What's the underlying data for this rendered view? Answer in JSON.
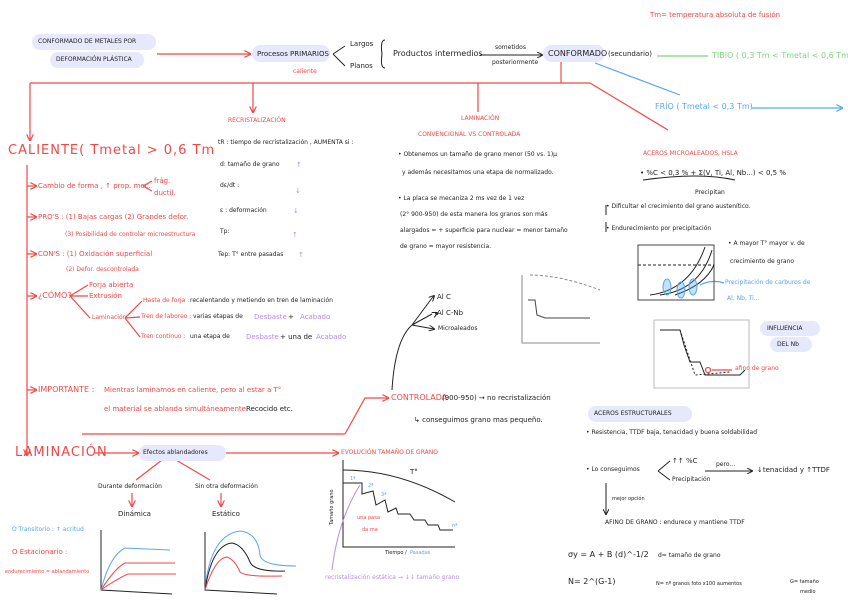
{
  "header": {
    "title_line1": "CONFORMADO DE METALES POR",
    "title_line2": "DEFORMACIÓN PLÁSTICA",
    "tm_note": "Tm= temperatura absoluta de fusión",
    "primarios": "Procesos PRIMARIOS",
    "caliente_note": "caliente",
    "largos": "Largos",
    "planos": "Planos",
    "productos": "Productos intermedios",
    "sometidos": "sometidos",
    "posteriormente": "posteriormente",
    "conformado": "CONFORMADO",
    "secundario": "(secundario)",
    "tibio": "TIBIO ( 0,3 Tm < Tmetal < 0,6 Tm)",
    "frio": "FRÍO ( Tmetal < 0,3 Tm)"
  },
  "caliente": {
    "title": "CALIENTE( Tmetal > 0,6 Tm",
    "cambio": "Cambio de forma , ↑ prop. mec.",
    "fragil": "frág.",
    "ductil": "ductil.",
    "pros": "PRO'S :  (1) Bajas cargas   (2) Grandes defor.",
    "pros_3": "(3) Posibilidad de controlar microestructura",
    "cons": "CON'S :  (1) Oxidación superficial",
    "cons_2": "(2) Defor. descontrolada",
    "como": "¿CÓMO?",
    "forja": "Forja abierta",
    "extrusion": "Extrusión",
    "laminacion": "Laminación",
    "hasta_forja": "Hasta de forja :",
    "hasta_forja_desc": "recalentando y metiendo en tren de laminación",
    "tren_laboreo": "Tren de laboreo :",
    "tren_laboreo_desc": "varias etapas de",
    "tren_continuo": "Tren continuo :",
    "tren_continuo_desc": "una etapa de",
    "desbaste": "Desbaste",
    "acabado": "Acabado",
    "y": "+",
    "y2": "+ una de",
    "importante": "IMPORTANTE :",
    "importante_1": "Mientras laminamos en caliente, pero al estar a T°",
    "importante_2": "el material se ablanda simultáneamente.",
    "importante_3": "Recocido etc."
  },
  "recristalizacion": {
    "title": "RECRISTALIZACIÓN",
    "intro": "tR : tiempo de recristalización , AUMENTA si :",
    "rows": [
      {
        "label": "d: tamaño de grano",
        "arrow": "↑"
      },
      {
        "label": "dε/dt :",
        "arrow": "↓"
      },
      {
        "label": "ε : deformación",
        "arrow": "↓"
      },
      {
        "label": "Tp:",
        "arrow": "↑"
      },
      {
        "label": "Tep: T° entre pasadas",
        "arrow": "↑"
      }
    ]
  },
  "laminacion_top": {
    "title": "LAMINACIÓN",
    "subtitle": "CONVENCIONAL VS CONTROLADA",
    "p1_l1": "• Obtenemos un tamaño de grano menor (50 vs. 1)μ",
    "p1_l2": "y además necesitamos una etapa de normalizado.",
    "p2_l1": "• La placa se mecaniza 2 ms vez de 1 vez",
    "p2_l2": "(2° 900-950) de esta manera los granos son más",
    "p2_l3": "alargados = + superficie para nuclear = menor tamaño",
    "p2_l4": "de grano = mayor resistencia.",
    "al_c": "Al C",
    "al_c_nb": "Al C-Nb",
    "microaleados": "Microaleados",
    "controlada": "CONTROLADA",
    "controlada_range": "(900-950) → no recristalización",
    "conseguimos": "↳ conseguimos grano mas pequeño."
  },
  "microaleados": {
    "title": "ACEROS MICROALEADOS, HSLA",
    "composicion": "• %C < 0,3 %   + Σ(V, Ti, Al, Nb...) < 0,5 %",
    "precipitan": "Precipitan",
    "dificultar": "• Dificultar el crecimiento del grano austenítico.",
    "endurecimiento": "• Endurecimiento por precipitación",
    "mayor_t_1": "• A mayor T° mayor v. de",
    "mayor_t_2": "crecimiento de grano",
    "precip_1": "Precipitación de carburos de",
    "precip_2": "Al, Nb, Ti...",
    "influencia_1": "INFLUENCIA",
    "influencia_2": "DEL Nb",
    "afino": "afino de grano"
  },
  "estructurales": {
    "title": "ACEROS ESTRUCTURALES",
    "line1": "• Resistencia, TTDF baja, tenacidad y buena soldabilidad",
    "conseguimos": "• Lo conseguimos",
    "c_up": "↑↑ %C",
    "precipitacion": "Precipitación",
    "pero": "pero...",
    "result": "↓tenacidad y ↑TTDF",
    "mejor": "mejor opción",
    "afino": "AFINO DE GRANO : endurece y mantiene TTDF",
    "formula": "σy = A + B (d)^-1/2",
    "d_def": "d= tamaño de grano",
    "n_formula": "N= 2^(G-1)",
    "n_def": "N= nº granos foto x100 aumentos",
    "g_def_1": "G= tamaño",
    "g_def_2": "medio"
  },
  "laminacion_bottom": {
    "title": "LAMINACIÓN",
    "efectos": "Efectos ablandadores",
    "durante": "Durante deformación",
    "sin_otra": "Sin otra deformación",
    "dinamica": "Dinámica",
    "estatico": "Estático",
    "transitorio": "O Transitorio : ↑ acritud",
    "estacionario": "O Estacionario :",
    "equilibrio": "endurecimiento = ablandamiento",
    "evolucion": "EVOLUCIÓN TAMAÑO DE GRANO",
    "t_label": "T°",
    "y_axis": "Tamaño grano",
    "x_axis": "Tiempo /",
    "x_axis_2": "Pasadas",
    "pass_1": "1ª",
    "pass_2": "2ª",
    "pass_3": "3ª",
    "pass_n": "nª",
    "una_pasada_1": "una pasa",
    "una_pasada_2": "da ma",
    "recristalizacion": "recristalización estática → ↓↓ tamaño grano"
  },
  "colors": {
    "red": "#f04848",
    "blue": "#5aa6f2",
    "green": "#7fd47f",
    "purple": "#b48cf0",
    "pill": "#e6e8fb"
  }
}
